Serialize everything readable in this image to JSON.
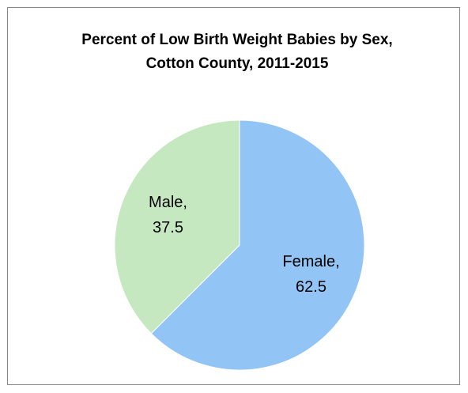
{
  "chart_data": {
    "type": "pie",
    "title": "Percent of Low Birth Weight Babies by Sex, Cotton County, 2011-2015",
    "categories": [
      "Female,",
      "Male,"
    ],
    "values": [
      62.5,
      37.5
    ],
    "colors": [
      "#92c5f5",
      "#c6e8c0"
    ]
  }
}
